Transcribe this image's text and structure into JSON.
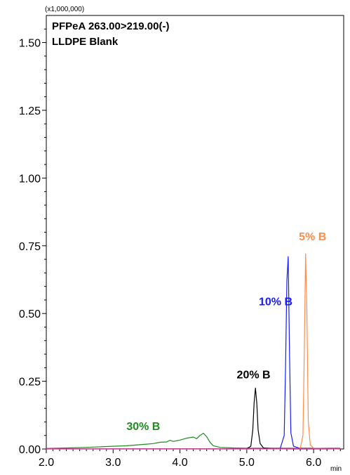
{
  "chart_data": {
    "type": "line",
    "title": "PFPeA 263.00>219.00(-)",
    "subtitle": "LLDPE Blank",
    "y_scale_label": "(x1,000,000)",
    "x_unit": "min",
    "xlim": [
      2.0,
      6.45
    ],
    "ylim": [
      0.0,
      1.6
    ],
    "x_ticks": [
      2.0,
      3.0,
      4.0,
      5.0,
      6.0
    ],
    "x_tick_labels": [
      "2.0",
      "3.0",
      "4.0",
      "5.0",
      "6.0"
    ],
    "y_ticks": [
      0.0,
      0.25,
      0.5,
      0.75,
      1.0,
      1.25,
      1.5
    ],
    "y_tick_labels": [
      "0.00",
      "0.25",
      "0.50",
      "0.75",
      "1.00",
      "1.25",
      "1.50"
    ],
    "grid": false,
    "series": [
      {
        "name": "30% B",
        "color": "#1e8c1e",
        "x": [
          2.0,
          2.3,
          2.6,
          2.9,
          3.2,
          3.5,
          3.6,
          3.7,
          3.8,
          3.85,
          3.9,
          4.0,
          4.1,
          4.2,
          4.25,
          4.3,
          4.35,
          4.4,
          4.45,
          4.5,
          4.6,
          4.8,
          5.0,
          5.5,
          6.0,
          6.4
        ],
        "y": [
          0.002,
          0.004,
          0.006,
          0.009,
          0.012,
          0.018,
          0.02,
          0.025,
          0.026,
          0.032,
          0.028,
          0.033,
          0.04,
          0.044,
          0.038,
          0.05,
          0.058,
          0.045,
          0.025,
          0.012,
          0.006,
          0.004,
          0.003,
          0.003,
          0.003,
          0.003
        ]
      },
      {
        "name": "20% B",
        "color": "#000000",
        "x": [
          2.0,
          4.5,
          5.0,
          5.06,
          5.09,
          5.11,
          5.13,
          5.15,
          5.17,
          5.2,
          5.25,
          5.4,
          6.4
        ],
        "y": [
          0.001,
          0.001,
          0.001,
          0.01,
          0.07,
          0.17,
          0.225,
          0.17,
          0.07,
          0.02,
          0.004,
          0.001,
          0.001
        ],
        "label_text": "20% B"
      },
      {
        "name": "10% B",
        "color": "#1a1aff",
        "x": [
          2.0,
          5.0,
          5.5,
          5.56,
          5.58,
          5.6,
          5.62,
          5.64,
          5.66,
          5.7,
          5.8,
          6.4
        ],
        "y": [
          0.0,
          0.0,
          0.002,
          0.05,
          0.3,
          0.62,
          0.71,
          0.35,
          0.06,
          0.01,
          0.002,
          0.0
        ],
        "label_text": "10% B"
      },
      {
        "name": "5% B",
        "color": "#ff8c4a",
        "x": [
          2.0,
          5.5,
          5.8,
          5.84,
          5.86,
          5.88,
          5.9,
          5.92,
          5.95,
          6.0,
          6.4
        ],
        "y": [
          0.0,
          0.0,
          0.002,
          0.05,
          0.35,
          0.72,
          0.5,
          0.1,
          0.015,
          0.003,
          0.0
        ]
      },
      {
        "name": "baseline",
        "color": "#c04090",
        "x": [
          2.0,
          6.4
        ],
        "y": [
          0.001,
          0.001
        ]
      }
    ],
    "annotations": [
      {
        "text": "30% B",
        "color": "#1e8c1e",
        "x": 3.2,
        "y": 0.07
      },
      {
        "text": "20% B",
        "color": "#000000",
        "x": 4.85,
        "y": 0.26
      },
      {
        "text": "10% B",
        "color": "#1a1aff",
        "x": 5.18,
        "y": 0.53
      },
      {
        "text": "5% B",
        "color": "#ff8c4a",
        "x": 5.78,
        "y": 0.77
      }
    ]
  }
}
